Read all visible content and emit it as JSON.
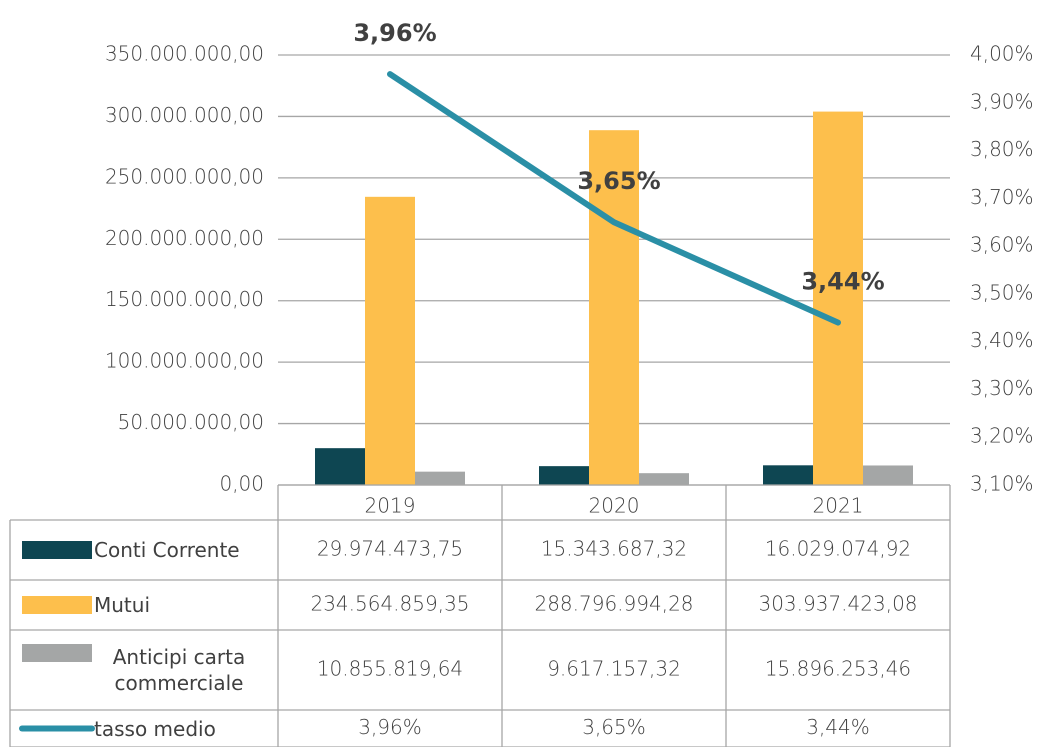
{
  "chart_data": {
    "type": "bar",
    "categories": [
      "2019",
      "2020",
      "2021"
    ],
    "series": [
      {
        "name": "Conti Corrente",
        "color": "#0e4652",
        "values": [
          29974473.75,
          15343687.32,
          16029074.92
        ],
        "value_labels": [
          "29.974.473,75",
          "15.343.687,32",
          "16.029.074,92"
        ]
      },
      {
        "name": "Mutui",
        "color": "#fdbf4c",
        "values": [
          234564859.35,
          288796994.28,
          303937423.08
        ],
        "value_labels": [
          "234.564.859,35",
          "288.796.994,28",
          "303.937.423,08"
        ]
      },
      {
        "name": "Anticipi carta commerciale",
        "color": "#a4a6a6",
        "values": [
          10855819.64,
          9617157.32,
          15896253.46
        ],
        "value_labels": [
          "10.855.819,64",
          "9.617.157,32",
          "15.896.253,46"
        ]
      },
      {
        "name": "tasso medio",
        "type": "line",
        "axis": "y2",
        "color": "#2a8fa6",
        "values": [
          3.96,
          3.65,
          3.44
        ],
        "value_labels": [
          "3,96%",
          "3,65%",
          "3,44%"
        ]
      }
    ],
    "ylim": [
      0,
      350000000
    ],
    "yticks": [
      {
        "value": 0,
        "label": "0,00"
      },
      {
        "value": 50000000,
        "label": "50.000.000,00"
      },
      {
        "value": 100000000,
        "label": "100.000.000,00"
      },
      {
        "value": 150000000,
        "label": "150.000.000,00"
      },
      {
        "value": 200000000,
        "label": "200.000.000,00"
      },
      {
        "value": 250000000,
        "label": "250.000.000,00"
      },
      {
        "value": 300000000,
        "label": "300.000.000,00"
      },
      {
        "value": 350000000,
        "label": "350.000.000,00"
      }
    ],
    "y2lim": [
      3.1,
      4.0
    ],
    "y2ticks": [
      {
        "value": 3.1,
        "label": "3,10%"
      },
      {
        "value": 3.2,
        "label": "3,20%"
      },
      {
        "value": 3.3,
        "label": "3,30%"
      },
      {
        "value": 3.4,
        "label": "3,40%"
      },
      {
        "value": 3.5,
        "label": "3,50%"
      },
      {
        "value": 3.6,
        "label": "3,60%"
      },
      {
        "value": 3.7,
        "label": "3,70%"
      },
      {
        "value": 3.8,
        "label": "3,80%"
      },
      {
        "value": 3.9,
        "label": "3,90%"
      },
      {
        "value": 4.0,
        "label": "4,00%"
      }
    ],
    "grid": true
  }
}
